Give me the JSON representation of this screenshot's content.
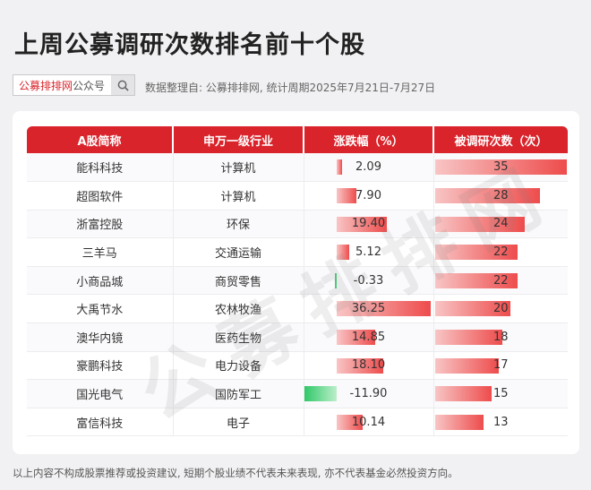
{
  "title": "上周公募调研次数排名前十个股",
  "search": {
    "brand": "公募排排网",
    "suffix": "公众号"
  },
  "source": "数据整理自: 公募排排网, 统计周期2025年7月21日-7月27日",
  "table": {
    "headers": [
      "A股简称",
      "申万一级行业",
      "涨跌幅（%）",
      "被调研次数（次）"
    ],
    "rows": [
      {
        "name": "能科科技",
        "industry": "计算机",
        "change": "2.09",
        "count": "35"
      },
      {
        "name": "超图软件",
        "industry": "计算机",
        "change": "7.90",
        "count": "28"
      },
      {
        "name": "浙富控股",
        "industry": "环保",
        "change": "19.40",
        "count": "24"
      },
      {
        "name": "三羊马",
        "industry": "交通运输",
        "change": "5.12",
        "count": "22"
      },
      {
        "name": "小商品城",
        "industry": "商贸零售",
        "change": "-0.33",
        "count": "22"
      },
      {
        "name": "大禹节水",
        "industry": "农林牧渔",
        "change": "36.25",
        "count": "20"
      },
      {
        "name": "澳华内镜",
        "industry": "医药生物",
        "change": "14.85",
        "count": "18"
      },
      {
        "name": "豪鹏科技",
        "industry": "电力设备",
        "change": "18.10",
        "count": "17"
      },
      {
        "name": "国光电气",
        "industry": "国防军工",
        "change": "-11.90",
        "count": "15"
      },
      {
        "name": "富信科技",
        "industry": "电子",
        "change": "10.14",
        "count": "13"
      }
    ]
  },
  "watermark": "公募排排网",
  "footnote": "以上内容不构成股票推荐或投资建议, 短期个股业绩不代表未来表现, 亦不代表基金必然投资方向。"
}
